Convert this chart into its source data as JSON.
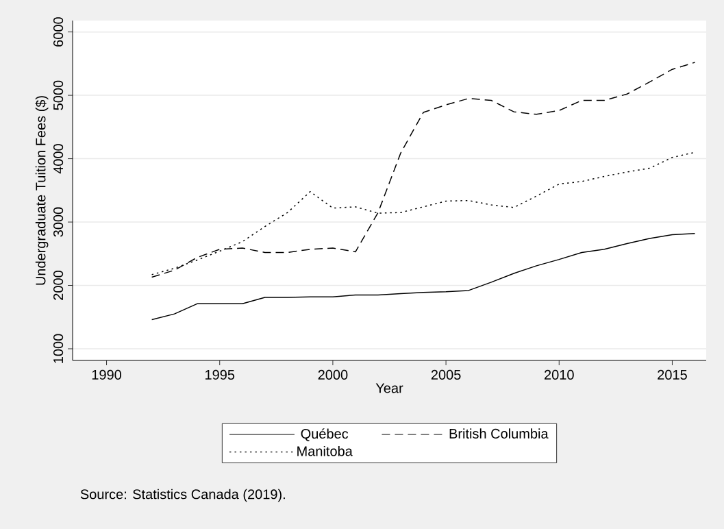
{
  "chart_data": {
    "type": "line",
    "xlabel": "Year",
    "ylabel": "Undergraduate Tuition Fees ($)",
    "x": [
      1992,
      1993,
      1994,
      1995,
      1996,
      1997,
      1998,
      1999,
      2000,
      2001,
      2002,
      2003,
      2004,
      2005,
      2006,
      2007,
      2008,
      2009,
      2010,
      2011,
      2012,
      2013,
      2014,
      2015,
      2016
    ],
    "series": [
      {
        "name": "Québec",
        "color": "#000000",
        "line_style": "solid",
        "values": [
          1460,
          1550,
          1710,
          1710,
          1710,
          1810,
          1810,
          1820,
          1820,
          1850,
          1850,
          1870,
          1890,
          1900,
          1920,
          2050,
          2190,
          2310,
          2410,
          2520,
          2570,
          2660,
          2740,
          2800,
          2820
        ]
      },
      {
        "name": "British Columbia",
        "color": "#000000",
        "line_style": "dashed",
        "values": [
          2130,
          2240,
          2440,
          2570,
          2590,
          2520,
          2520,
          2570,
          2590,
          2530,
          3150,
          4090,
          4730,
          4850,
          4950,
          4920,
          4740,
          4700,
          4760,
          4920,
          4920,
          5020,
          5210,
          5410,
          5520
        ]
      },
      {
        "name": "Manitoba",
        "color": "#000000",
        "line_style": "dotted",
        "values": [
          2170,
          2270,
          2400,
          2540,
          2690,
          2930,
          3150,
          3480,
          3220,
          3240,
          3140,
          3150,
          3240,
          3330,
          3340,
          3270,
          3230,
          3410,
          3600,
          3640,
          3720,
          3790,
          3850,
          4020,
          4100
        ]
      }
    ],
    "xlim": [
      1988.5,
      2016.5
    ],
    "ylim": [
      816,
      6180
    ],
    "xticks": [
      1990,
      1995,
      2000,
      2005,
      2010,
      2015
    ],
    "yticks": [
      1000,
      2000,
      3000,
      4000,
      5000,
      6000
    ],
    "grid": "y",
    "legend": "bottom",
    "annotations": [
      "Source: Statistics Canada (2019)."
    ]
  }
}
